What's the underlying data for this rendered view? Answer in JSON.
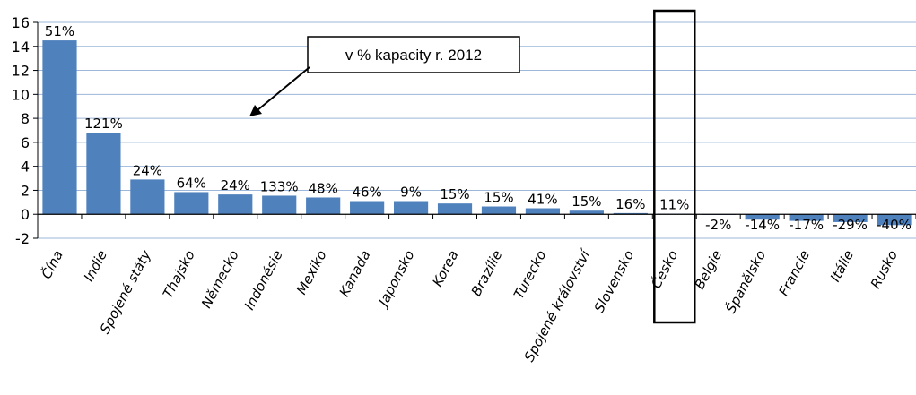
{
  "chart_data": {
    "type": "bar",
    "categories": [
      "Čína",
      "Indie",
      "Spojené státy",
      "Thajsko",
      "Německo",
      "Indonésie",
      "Mexiko",
      "Kanada",
      "Japonsko",
      "Korea",
      "Brazílie",
      "Turecko",
      "Spojené království",
      "Slovensko",
      "Česko",
      "Belgie",
      "Španělsko",
      "Francie",
      "Itálie",
      "Rusko"
    ],
    "values": [
      14.5,
      6.8,
      2.9,
      1.85,
      1.65,
      1.55,
      1.4,
      1.1,
      1.1,
      0.9,
      0.65,
      0.5,
      0.3,
      0.1,
      0.05,
      -0.05,
      -0.45,
      -0.55,
      -0.65,
      -0.9
    ],
    "data_labels": [
      "51%",
      "121%",
      "24%",
      "64%",
      "24%",
      "133%",
      "48%",
      "46%",
      "9%",
      "15%",
      "15%",
      "41%",
      "15%",
      "16%",
      "11%",
      "-2%",
      "-14%",
      "-17%",
      "-29%",
      "-40%"
    ],
    "ylim": [
      -2,
      16
    ],
    "yticks": [
      -2,
      0,
      2,
      4,
      6,
      8,
      10,
      12,
      14,
      16
    ],
    "grid": true,
    "bar_color": "#4f81bd",
    "grid_color": "#9bb7d9",
    "highlighted_category": "Česko",
    "annotation": "v % kapacity r. 2012",
    "title": "",
    "xlabel": "",
    "ylabel": ""
  }
}
